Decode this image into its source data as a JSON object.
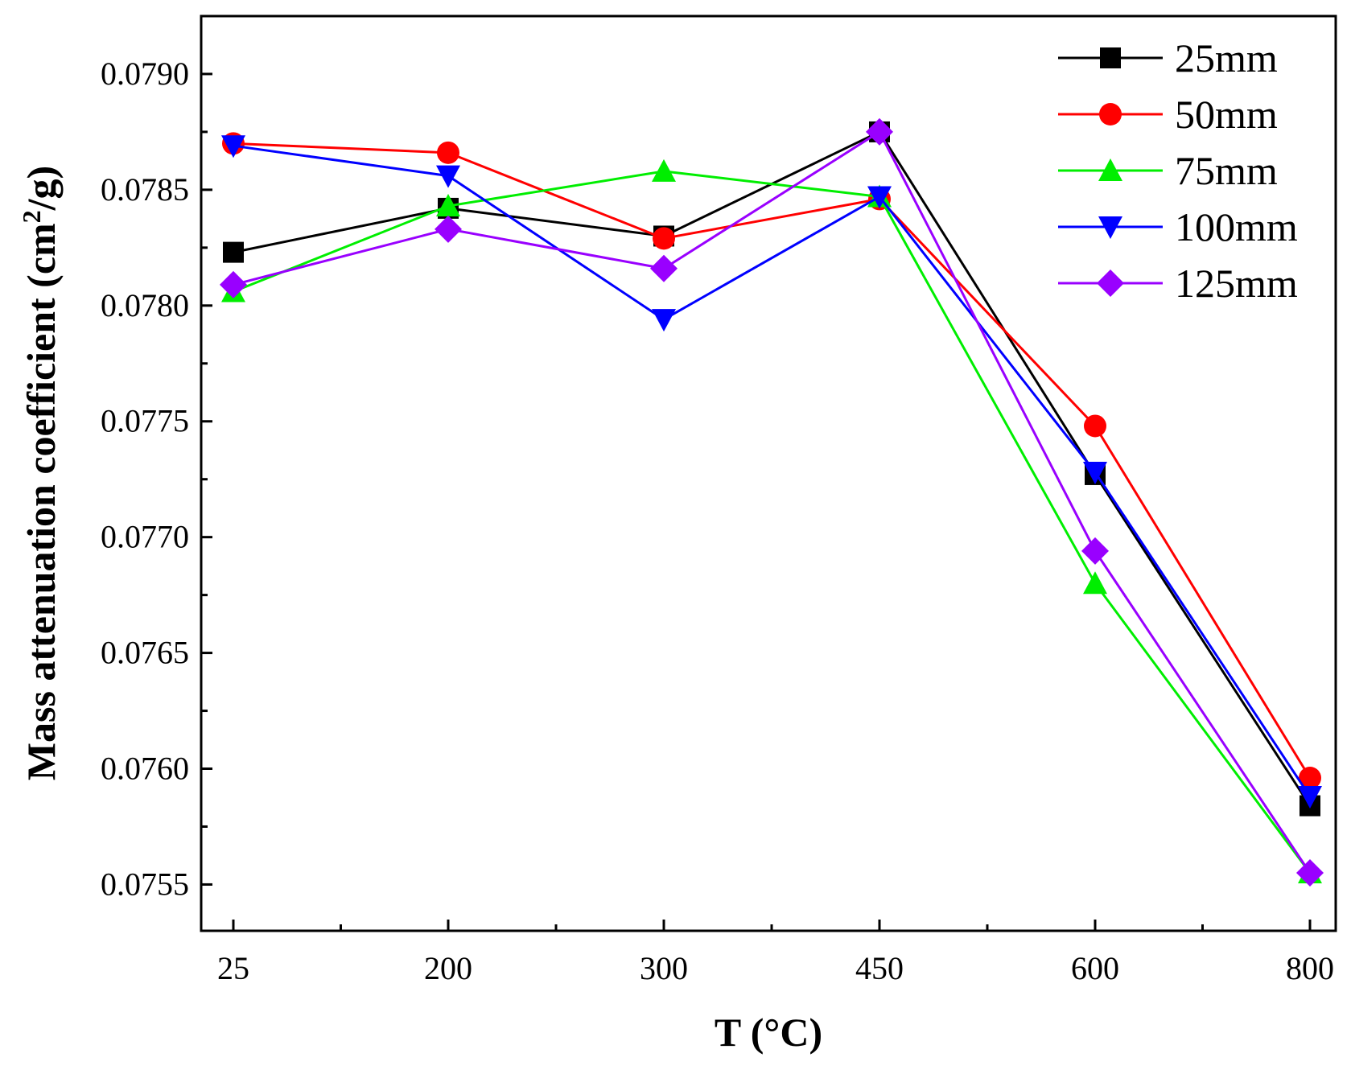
{
  "chart_data": {
    "type": "line",
    "xlabel": "T (°C)",
    "ylabel_main": "Mass attenuation coefficient (cm",
    "ylabel_sup": "2",
    "ylabel_tail": "/g)",
    "categories": [
      "25",
      "200",
      "300",
      "450",
      "600",
      "800"
    ],
    "ylim": [
      0.0753,
      0.07925
    ],
    "yticks": [
      0.0755,
      0.076,
      0.0765,
      0.077,
      0.0775,
      0.078,
      0.0785,
      0.079
    ],
    "ytick_labels": [
      "0.0755",
      "0.0760",
      "0.0765",
      "0.0770",
      "0.0775",
      "0.0780",
      "0.0785",
      "0.0790"
    ],
    "legend_position": "top-right",
    "series": [
      {
        "name": "25mm",
        "color": "#000000",
        "marker": "square",
        "values": [
          0.07823,
          0.07842,
          0.0783,
          0.07875,
          0.07727,
          0.07584
        ]
      },
      {
        "name": "50mm",
        "color": "#ff0000",
        "marker": "circle",
        "values": [
          0.0787,
          0.07866,
          0.07829,
          0.07846,
          0.07748,
          0.07596
        ]
      },
      {
        "name": "75mm",
        "color": "#00ee00",
        "marker": "triangle-up",
        "values": [
          0.07806,
          0.07843,
          0.07858,
          0.07847,
          0.0768,
          0.07555
        ]
      },
      {
        "name": "100mm",
        "color": "#0000ff",
        "marker": "triangle-down",
        "values": [
          0.07869,
          0.07856,
          0.07794,
          0.07847,
          0.07728,
          0.07588
        ]
      },
      {
        "name": "125mm",
        "color": "#9900ff",
        "marker": "diamond",
        "values": [
          0.07809,
          0.07833,
          0.07816,
          0.07875,
          0.07694,
          0.07555
        ]
      }
    ]
  }
}
